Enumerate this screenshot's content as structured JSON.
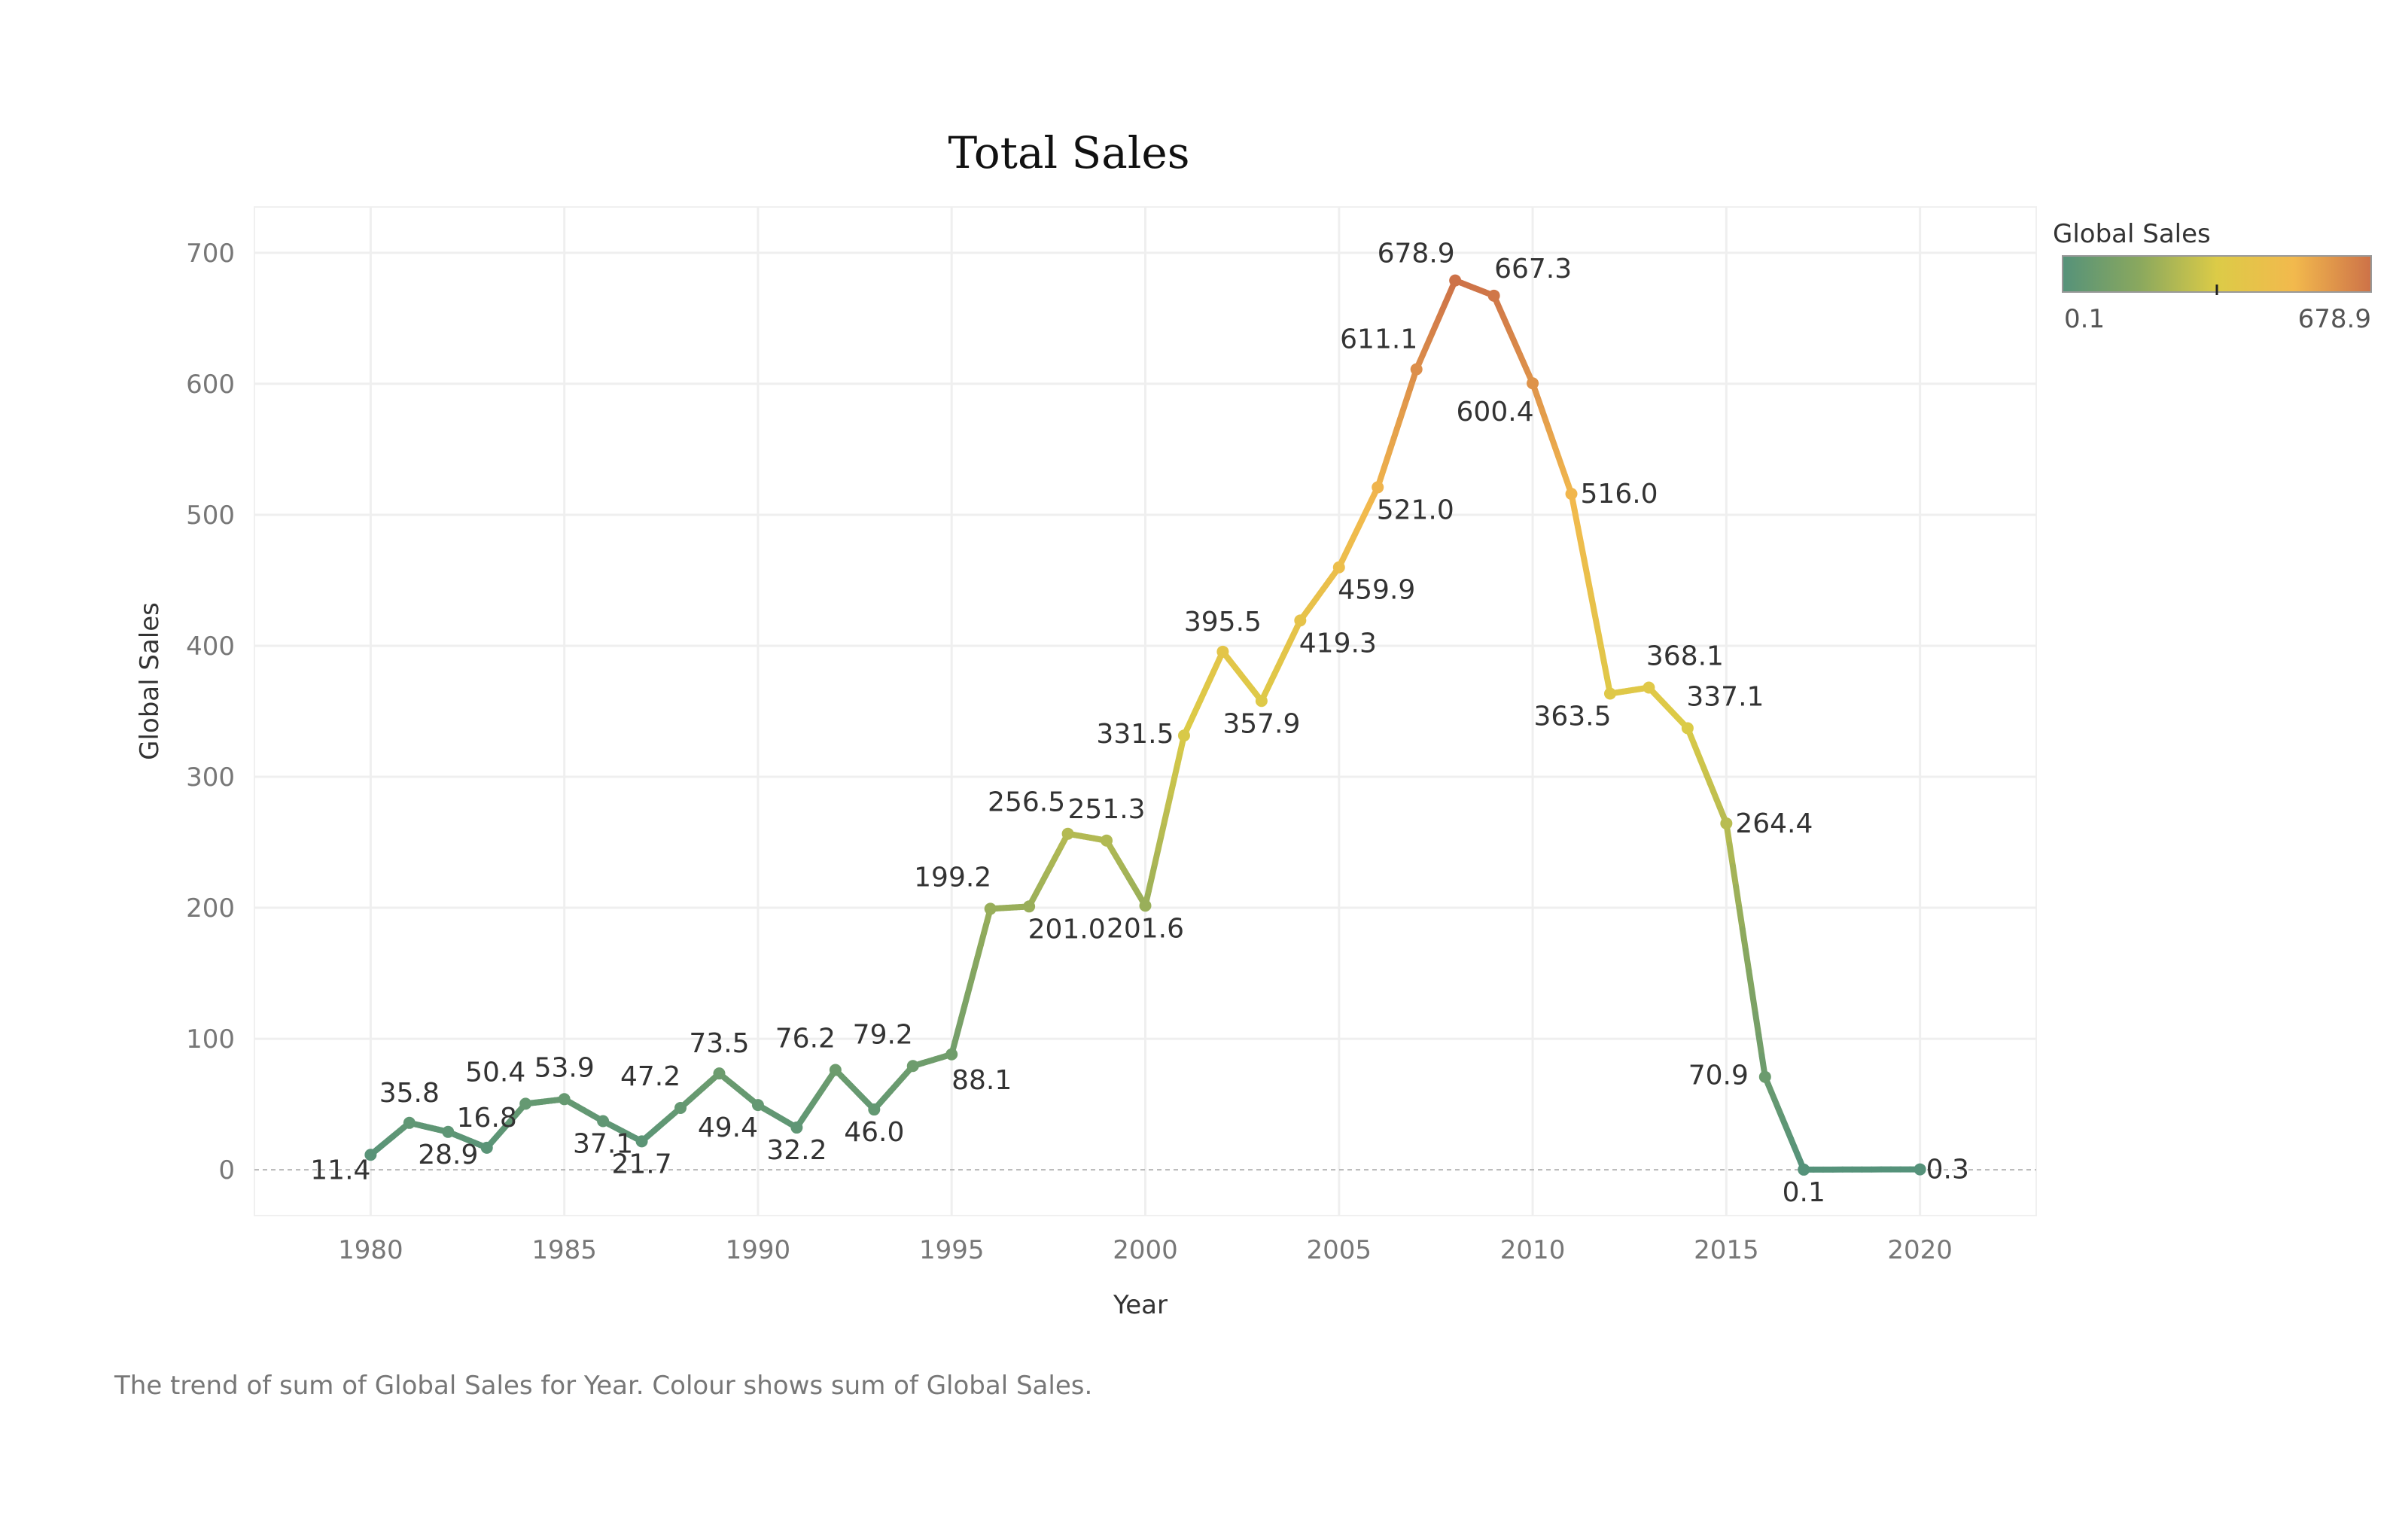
{
  "chart_data": {
    "type": "line",
    "title": "Total Sales",
    "xlabel": "Year",
    "ylabel": "Global Sales",
    "caption": "The trend of sum of Global Sales for Year. Colour shows sum of Global Sales.",
    "xlim": [
      1977,
      2023
    ],
    "ylim": [
      -35,
      735
    ],
    "x_ticks": [
      1980,
      1985,
      1990,
      1995,
      2000,
      2005,
      2010,
      2015,
      2020
    ],
    "y_ticks": [
      0,
      100,
      200,
      300,
      400,
      500,
      600,
      700
    ],
    "grid": true,
    "x": [
      1980,
      1981,
      1982,
      1983,
      1984,
      1985,
      1986,
      1987,
      1988,
      1989,
      1990,
      1991,
      1992,
      1993,
      1994,
      1995,
      1996,
      1997,
      1998,
      1999,
      2000,
      2001,
      2002,
      2003,
      2004,
      2005,
      2006,
      2007,
      2008,
      2009,
      2010,
      2011,
      2012,
      2013,
      2014,
      2015,
      2016,
      2017,
      2020
    ],
    "values": [
      11.4,
      35.8,
      28.9,
      16.8,
      50.4,
      53.9,
      37.1,
      21.7,
      47.2,
      73.5,
      49.4,
      32.2,
      76.2,
      46.0,
      79.2,
      88.1,
      199.2,
      201.0,
      256.5,
      251.3,
      201.6,
      331.5,
      395.5,
      357.9,
      419.3,
      459.9,
      521.0,
      611.1,
      678.9,
      667.3,
      600.4,
      516.0,
      363.5,
      368.1,
      337.1,
      264.4,
      70.9,
      0.1,
      0.3
    ],
    "labels": [
      "11.4",
      "35.8",
      "28.9",
      "16.8",
      "50.4",
      "53.9",
      "37.1",
      "21.7",
      "47.2",
      "73.5",
      "49.4",
      "32.2",
      "76.2",
      "46.0",
      "79.2",
      "88.1",
      "199.2",
      "201.0",
      "256.5",
      "251.3",
      "201.6",
      "331.5",
      "395.5",
      "357.9",
      "419.3",
      "459.9",
      "521.0",
      "611.1",
      "678.9",
      "667.3",
      "600.4",
      "516.0",
      "363.5",
      "368.1",
      "337.1",
      "264.4",
      "70.9",
      "0.1",
      "0.3"
    ],
    "color_scale": {
      "title": "Global Sales",
      "min_label": "0.1",
      "max_label": "678.9",
      "min": 0.1,
      "max": 678.9,
      "colors": [
        "#55927a",
        "#8aa85e",
        "#dccb47",
        "#f2b94d",
        "#cd7248"
      ],
      "midpoint_marker": 339.5
    },
    "legend_position": "top-right"
  }
}
